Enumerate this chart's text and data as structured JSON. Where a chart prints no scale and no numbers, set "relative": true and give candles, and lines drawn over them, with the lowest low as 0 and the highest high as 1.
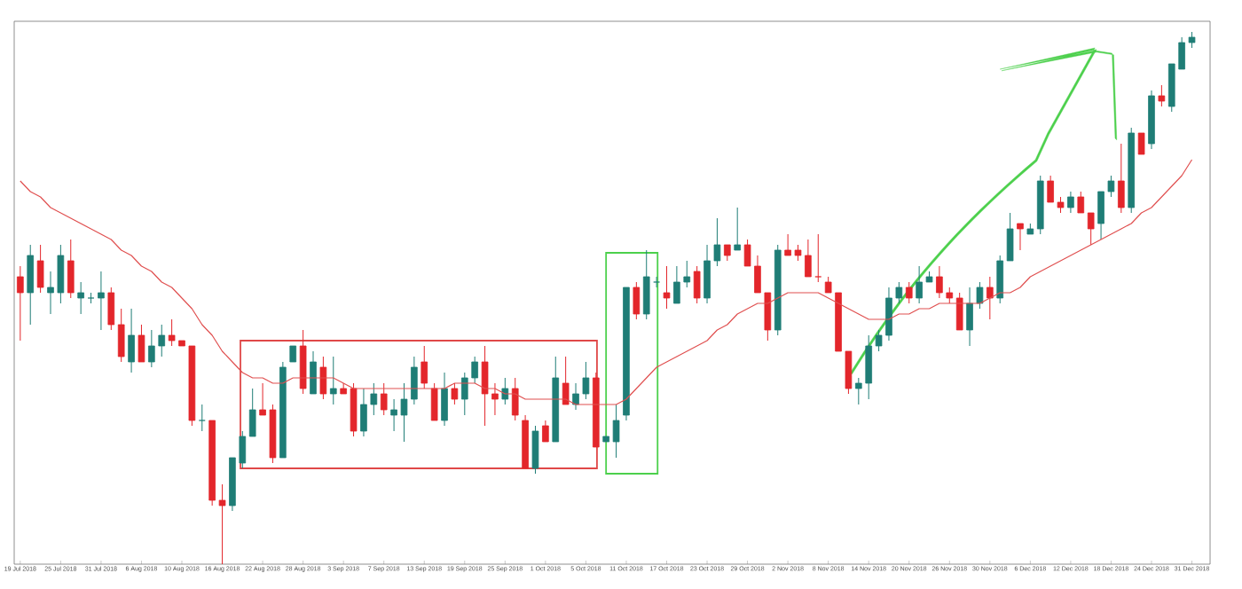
{
  "chart_data": {
    "type": "candlestick",
    "relative": true,
    "categories": [
      "19 Jul 2018",
      null,
      null,
      null,
      "25 Jul 2018",
      null,
      null,
      null,
      "31 Jul 2018",
      null,
      null,
      null,
      "6 Aug 2018",
      null,
      null,
      null,
      "10 Aug 2018",
      null,
      null,
      null,
      "16 Aug 2018",
      null,
      null,
      null,
      "22 Aug 2018",
      null,
      null,
      null,
      "28 Aug 2018",
      null,
      null,
      null,
      "3 Sep 2018",
      null,
      null,
      null,
      "7 Sep 2018",
      null,
      null,
      null,
      "13 Sep 2018",
      null,
      null,
      null,
      "19 Sep 2018",
      null,
      null,
      null,
      "25 Sep 2018",
      null,
      null,
      null,
      "1 Oct 2018",
      null,
      null,
      null,
      "5 Oct 2018",
      null,
      null,
      null,
      "11 Oct 2018",
      null,
      null,
      null,
      "17 Oct 2018",
      null,
      null,
      null,
      "23 Oct 2018",
      null,
      null,
      null,
      "29 Oct 2018",
      null,
      null,
      null,
      "2 Nov 2018",
      null,
      null,
      null,
      "8 Nov 2018",
      null,
      null,
      null,
      "14 Nov 2018",
      null,
      null,
      null,
      "20 Nov 2018",
      null,
      null,
      null,
      "26 Nov 2018",
      null,
      null,
      null,
      "30 Nov 2018",
      null,
      null,
      null,
      "6 Dec 2018",
      null,
      null,
      null,
      "12 Dec 2018",
      null,
      null,
      null,
      "18 Dec 2018",
      null,
      null,
      null,
      "24 Dec 2018",
      null,
      null,
      null,
      "31 Dec 2018"
    ],
    "ohlc": [
      [
        0.54,
        0.56,
        0.42,
        0.51
      ],
      [
        0.51,
        0.6,
        0.45,
        0.58
      ],
      [
        0.57,
        0.6,
        0.51,
        0.52
      ],
      [
        0.51,
        0.55,
        0.47,
        0.52
      ],
      [
        0.51,
        0.6,
        0.49,
        0.58
      ],
      [
        0.57,
        0.61,
        0.5,
        0.51
      ],
      [
        0.5,
        0.53,
        0.47,
        0.51
      ],
      [
        0.5,
        0.51,
        0.49,
        0.5
      ],
      [
        0.5,
        0.55,
        0.44,
        0.51
      ],
      [
        0.51,
        0.52,
        0.44,
        0.45
      ],
      [
        0.45,
        0.48,
        0.38,
        0.39
      ],
      [
        0.38,
        0.48,
        0.36,
        0.43
      ],
      [
        0.43,
        0.45,
        0.38,
        0.38
      ],
      [
        0.38,
        0.44,
        0.37,
        0.41
      ],
      [
        0.41,
        0.45,
        0.39,
        0.43
      ],
      [
        0.43,
        0.46,
        0.41,
        0.42
      ],
      [
        0.42,
        0.42,
        0.41,
        0.41
      ],
      [
        0.41,
        0.41,
        0.26,
        0.27
      ],
      [
        0.27,
        0.3,
        0.25,
        0.27
      ],
      [
        0.27,
        0.27,
        0.11,
        0.12
      ],
      [
        0.12,
        0.15,
        0,
        0.11
      ],
      [
        0.11,
        0.2,
        0.1,
        0.2
      ],
      [
        0.19,
        0.25,
        0.18,
        0.24
      ],
      [
        0.24,
        0.33,
        0.24,
        0.29
      ],
      [
        0.29,
        0.34,
        0.28,
        0.28
      ],
      [
        0.29,
        0.3,
        0.19,
        0.2
      ],
      [
        0.2,
        0.38,
        0.2,
        0.37
      ],
      [
        0.38,
        0.41,
        0.38,
        0.41
      ],
      [
        0.41,
        0.44,
        0.32,
        0.33
      ],
      [
        0.32,
        0.4,
        0.32,
        0.38
      ],
      [
        0.37,
        0.39,
        0.31,
        0.32
      ],
      [
        0.32,
        0.39,
        0.3,
        0.33
      ],
      [
        0.33,
        0.34,
        0.32,
        0.32
      ],
      [
        0.33,
        0.34,
        0.24,
        0.25
      ],
      [
        0.25,
        0.33,
        0.24,
        0.3
      ],
      [
        0.3,
        0.34,
        0.28,
        0.32
      ],
      [
        0.32,
        0.34,
        0.28,
        0.29
      ],
      [
        0.28,
        0.31,
        0.25,
        0.29
      ],
      [
        0.28,
        0.34,
        0.23,
        0.31
      ],
      [
        0.31,
        0.39,
        0.3,
        0.37
      ],
      [
        0.38,
        0.41,
        0.33,
        0.34
      ],
      [
        0.33,
        0.34,
        0.27,
        0.27
      ],
      [
        0.27,
        0.36,
        0.26,
        0.33
      ],
      [
        0.33,
        0.34,
        0.3,
        0.31
      ],
      [
        0.31,
        0.36,
        0.28,
        0.35
      ],
      [
        0.35,
        0.39,
        0.34,
        0.38
      ],
      [
        0.38,
        0.41,
        0.26,
        0.32
      ],
      [
        0.32,
        0.34,
        0.28,
        0.31
      ],
      [
        0.31,
        0.35,
        0.3,
        0.33
      ],
      [
        0.33,
        0.35,
        0.27,
        0.28
      ],
      [
        0.27,
        0.28,
        0.18,
        0.18
      ],
      [
        0.18,
        0.26,
        0.17,
        0.25
      ],
      [
        0.26,
        0.27,
        0.23,
        0.23
      ],
      [
        0.23,
        0.39,
        0.23,
        0.35
      ],
      [
        0.34,
        0.39,
        0.3,
        0.3
      ],
      [
        0.3,
        0.34,
        0.29,
        0.32
      ],
      [
        0.32,
        0.38,
        0.31,
        0.35
      ],
      [
        0.35,
        0.36,
        0.22,
        0.22
      ],
      [
        0.23,
        0.24,
        0.23,
        0.24
      ],
      [
        0.23,
        0.3,
        0.2,
        0.27
      ],
      [
        0.28,
        0.52,
        0.27,
        0.52
      ],
      [
        0.52,
        0.53,
        0.46,
        0.47
      ],
      [
        0.47,
        0.59,
        0.46,
        0.54
      ],
      [
        0.53,
        0.54,
        0.52,
        0.53
      ],
      [
        0.51,
        0.56,
        0.48,
        0.5
      ],
      [
        0.49,
        0.56,
        0.49,
        0.53
      ],
      [
        0.53,
        0.57,
        0.52,
        0.54
      ],
      [
        0.55,
        0.56,
        0.49,
        0.5
      ],
      [
        0.5,
        0.6,
        0.49,
        0.57
      ],
      [
        0.57,
        0.65,
        0.56,
        0.6
      ],
      [
        0.6,
        0.6,
        0.57,
        0.58
      ],
      [
        0.59,
        0.67,
        0.59,
        0.6
      ],
      [
        0.6,
        0.61,
        0.56,
        0.56
      ],
      [
        0.56,
        0.58,
        0.51,
        0.51
      ],
      [
        0.51,
        0.51,
        0.42,
        0.44
      ],
      [
        0.44,
        0.6,
        0.43,
        0.59
      ],
      [
        0.59,
        0.62,
        0.58,
        0.58
      ],
      [
        0.59,
        0.6,
        0.57,
        0.58
      ],
      [
        0.58,
        0.61,
        0.54,
        0.54
      ],
      [
        0.54,
        0.62,
        0.53,
        0.54
      ],
      [
        0.53,
        0.54,
        0.51,
        0.51
      ],
      [
        0.51,
        0.51,
        0.4,
        0.4
      ],
      [
        0.4,
        0.4,
        0.32,
        0.33
      ],
      [
        0.33,
        0.35,
        0.3,
        0.34
      ],
      [
        0.34,
        0.43,
        0.31,
        0.41
      ],
      [
        0.41,
        0.44,
        0.4,
        0.43
      ],
      [
        0.43,
        0.52,
        0.42,
        0.5
      ],
      [
        0.5,
        0.53,
        0.49,
        0.52
      ],
      [
        0.52,
        0.53,
        0.49,
        0.5
      ],
      [
        0.5,
        0.56,
        0.49,
        0.53
      ],
      [
        0.53,
        0.55,
        0.53,
        0.54
      ],
      [
        0.54,
        0.56,
        0.5,
        0.51
      ],
      [
        0.51,
        0.52,
        0.49,
        0.5
      ],
      [
        0.5,
        0.51,
        0.44,
        0.44
      ],
      [
        0.44,
        0.52,
        0.41,
        0.49
      ],
      [
        0.49,
        0.53,
        0.48,
        0.52
      ],
      [
        0.52,
        0.54,
        0.46,
        0.5
      ],
      [
        0.5,
        0.58,
        0.49,
        0.57
      ],
      [
        0.57,
        0.66,
        0.57,
        0.63
      ],
      [
        0.64,
        0.64,
        0.59,
        0.63
      ],
      [
        0.62,
        0.64,
        0.62,
        0.63
      ],
      [
        0.63,
        0.73,
        0.62,
        0.72
      ],
      [
        0.72,
        0.73,
        0.68,
        0.68
      ],
      [
        0.68,
        0.69,
        0.66,
        0.67
      ],
      [
        0.67,
        0.7,
        0.66,
        0.69
      ],
      [
        0.69,
        0.7,
        0.66,
        0.66
      ],
      [
        0.66,
        0.66,
        0.6,
        0.63
      ],
      [
        0.64,
        0.7,
        0.61,
        0.7
      ],
      [
        0.7,
        0.73,
        0.69,
        0.72
      ],
      [
        0.72,
        0.79,
        0.66,
        0.67
      ],
      [
        0.67,
        0.82,
        0.66,
        0.81
      ],
      [
        0.81,
        0.81,
        0.77,
        0.77
      ],
      [
        0.79,
        0.89,
        0.78,
        0.88
      ],
      [
        0.88,
        0.9,
        0.86,
        0.87
      ],
      [
        0.86,
        0.94,
        0.85,
        0.94
      ],
      [
        0.93,
        0.99,
        0.93,
        0.98
      ],
      [
        0.98,
        1.0,
        0.97,
        0.99
      ]
    ],
    "colors": [
      "#e3262b",
      "#1f7d76",
      "#e3262b",
      "#1f7d76",
      "#1f7d76",
      "#e3262b",
      "#1f7d76",
      "#1f7d76",
      "#1f7d76",
      "#e3262b",
      "#e3262b",
      "#1f7d76",
      "#e3262b",
      "#1f7d76",
      "#1f7d76",
      "#e3262b",
      "#e3262b",
      "#e3262b",
      "#1f7d76",
      "#e3262b",
      "#e3262b",
      "#1f7d76",
      "#1f7d76",
      "#1f7d76",
      "#e3262b",
      "#e3262b",
      "#1f7d76",
      "#1f7d76",
      "#e3262b",
      "#1f7d76",
      "#e3262b",
      "#1f7d76",
      "#e3262b",
      "#e3262b",
      "#1f7d76",
      "#1f7d76",
      "#e3262b",
      "#1f7d76",
      "#1f7d76",
      "#1f7d76",
      "#e3262b",
      "#e3262b",
      "#1f7d76",
      "#e3262b",
      "#1f7d76",
      "#1f7d76",
      "#e3262b",
      "#e3262b",
      "#1f7d76",
      "#e3262b",
      "#e3262b",
      "#1f7d76",
      "#e3262b",
      "#1f7d76",
      "#e3262b",
      "#1f7d76",
      "#1f7d76",
      "#e3262b",
      "#1f7d76",
      "#1f7d76",
      "#1f7d76",
      "#e3262b",
      "#1f7d76",
      "#1f7d76",
      "#e3262b",
      "#1f7d76",
      "#1f7d76",
      "#e3262b",
      "#1f7d76",
      "#1f7d76",
      "#e3262b",
      "#1f7d76",
      "#e3262b",
      "#e3262b",
      "#e3262b",
      "#1f7d76",
      "#e3262b",
      "#e3262b",
      "#e3262b",
      "#e3262b",
      "#e3262b",
      "#e3262b",
      "#e3262b",
      "#1f7d76",
      "#1f7d76",
      "#1f7d76",
      "#1f7d76",
      "#1f7d76",
      "#e3262b",
      "#1f7d76",
      "#1f7d76",
      "#e3262b",
      "#e3262b",
      "#e3262b",
      "#1f7d76",
      "#1f7d76",
      "#e3262b",
      "#1f7d76",
      "#1f7d76",
      "#e3262b",
      "#1f7d76",
      "#1f7d76",
      "#e3262b",
      "#e3262b",
      "#1f7d76",
      "#e3262b",
      "#e3262b",
      "#1f7d76",
      "#1f7d76",
      "#e3262b",
      "#1f7d76",
      "#e3262b",
      "#1f7d76",
      "#e3262b",
      "#1f7d76",
      "#1f7d76",
      "#1f7d76"
    ],
    "series": [
      {
        "type": "line",
        "color": "#e05050",
        "values": [
          0.72,
          0.7,
          0.69,
          0.67,
          0.66,
          0.65,
          0.64,
          0.63,
          0.62,
          0.61,
          0.59,
          0.58,
          0.56,
          0.55,
          0.53,
          0.52,
          0.5,
          0.48,
          0.45,
          0.43,
          0.4,
          0.38,
          0.36,
          0.35,
          0.35,
          0.34,
          0.34,
          0.35,
          0.35,
          0.35,
          0.35,
          0.35,
          0.34,
          0.33,
          0.33,
          0.33,
          0.33,
          0.33,
          0.33,
          0.33,
          0.33,
          0.33,
          0.33,
          0.34,
          0.34,
          0.34,
          0.33,
          0.33,
          0.32,
          0.32,
          0.31,
          0.31,
          0.31,
          0.31,
          0.31,
          0.3,
          0.3,
          0.3,
          0.3,
          0.3,
          0.31,
          0.33,
          0.35,
          0.37,
          0.38,
          0.39,
          0.4,
          0.41,
          0.42,
          0.44,
          0.45,
          0.47,
          0.48,
          0.49,
          0.49,
          0.5,
          0.51,
          0.51,
          0.51,
          0.51,
          0.5,
          0.49,
          0.48,
          0.47,
          0.46,
          0.46,
          0.46,
          0.47,
          0.47,
          0.48,
          0.48,
          0.49,
          0.49,
          0.49,
          0.49,
          0.49,
          0.5,
          0.51,
          0.51,
          0.52,
          0.54,
          0.55,
          0.56,
          0.57,
          0.58,
          0.59,
          0.6,
          0.61,
          0.62,
          0.63,
          0.64,
          0.66,
          0.67,
          0.69,
          0.71,
          0.73,
          0.76
        ]
      }
    ]
  }
}
